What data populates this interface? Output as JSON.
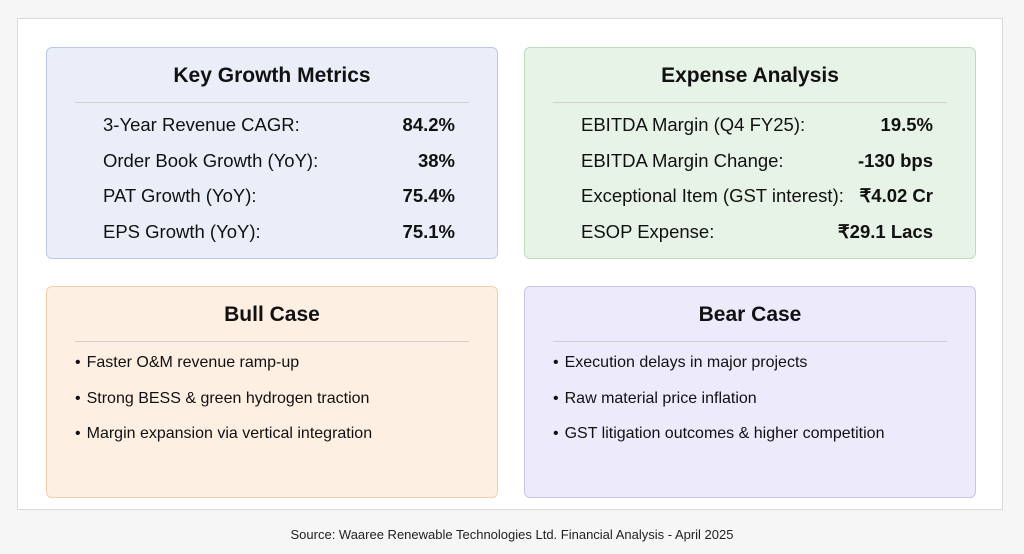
{
  "growth": {
    "title": "Key Growth Metrics",
    "rows": [
      {
        "label": "3-Year Revenue CAGR:",
        "value": "84.2%"
      },
      {
        "label": "Order Book Growth (YoY):",
        "value": "38%"
      },
      {
        "label": "PAT Growth (YoY):",
        "value": "75.4%"
      },
      {
        "label": "EPS Growth (YoY):",
        "value": "75.1%"
      }
    ]
  },
  "expense": {
    "title": "Expense Analysis",
    "rows": [
      {
        "label": "EBITDA Margin (Q4 FY25):",
        "value": "19.5%"
      },
      {
        "label": "EBITDA Margin Change:",
        "value": "-130 bps"
      },
      {
        "label": "Exceptional Item (GST interest):",
        "value": "₹4.02 Cr"
      },
      {
        "label": "ESOP Expense:",
        "value": "₹29.1 Lacs"
      }
    ]
  },
  "bull": {
    "title": "Bull Case",
    "items": [
      "Faster O&M revenue ramp-up",
      "Strong BESS & green hydrogen traction",
      "Margin expansion via vertical integration"
    ]
  },
  "bear": {
    "title": "Bear Case",
    "items": [
      "Execution delays in major projects",
      "Raw material price inflation",
      "GST litigation outcomes & higher competition"
    ]
  },
  "source": "Source: Waaree Renewable Technologies Ltd. Financial Analysis - April 2025",
  "colors": {
    "growth_bg": "#e9eef9",
    "expense_bg": "#e7f3e6",
    "bull_bg": "#fdf0e3",
    "bear_bg": "#eceafb"
  }
}
